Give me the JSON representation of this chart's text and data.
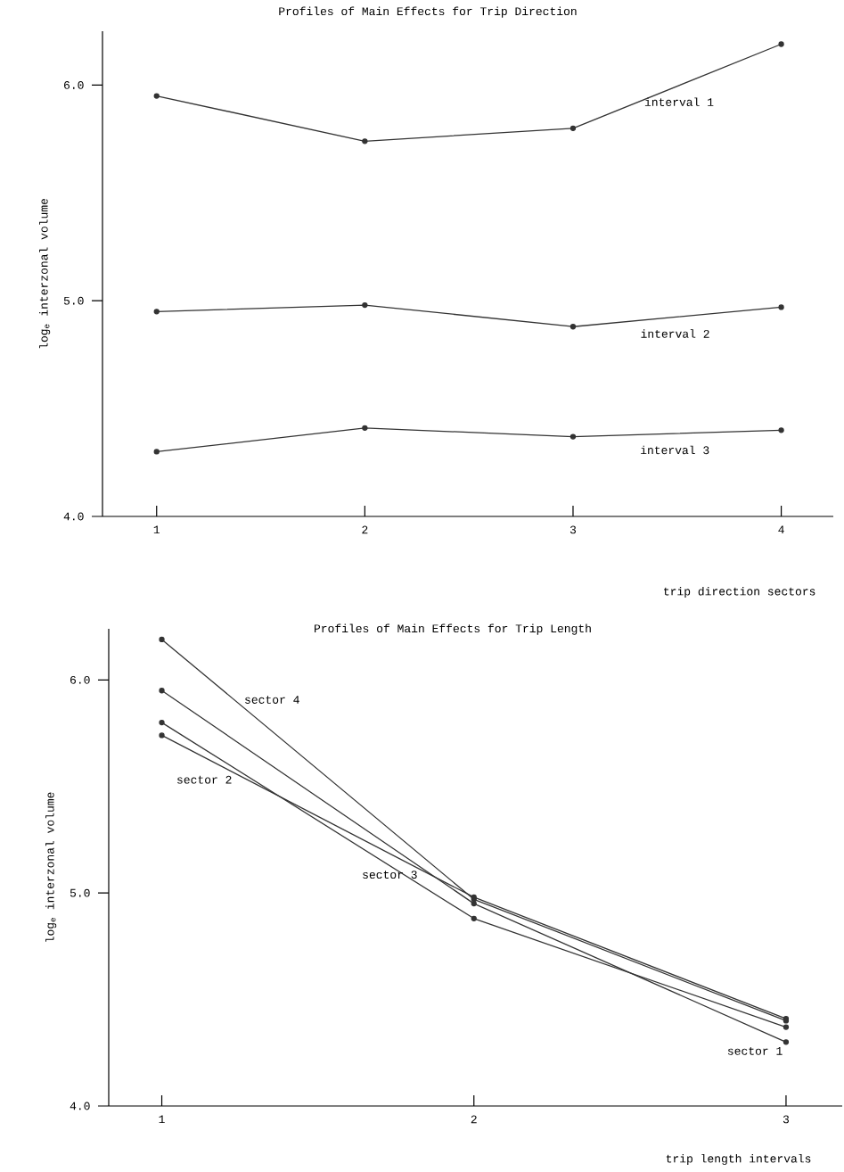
{
  "chart_data": [
    {
      "type": "line",
      "title": "Profiles of Main Effects for Trip Direction",
      "xlabel": "trip direction sectors",
      "ylabel": "log$_{e}$ interzonal volume",
      "x": [
        1,
        2,
        3,
        4
      ],
      "series": [
        {
          "name": "interval 1",
          "color": "#333333",
          "values": [
            5.95,
            5.74,
            5.8,
            6.19
          ]
        },
        {
          "name": "interval 2",
          "color": "#333333",
          "values": [
            4.95,
            4.98,
            4.88,
            4.97
          ]
        },
        {
          "name": "interval 3",
          "color": "#333333",
          "values": [
            4.3,
            4.41,
            4.37,
            4.4
          ]
        }
      ],
      "xlim": [
        0.74,
        4.25
      ],
      "ylim": [
        4.0,
        6.25
      ],
      "xticks": [
        1,
        2,
        3,
        4
      ],
      "yticks": [
        {
          "value": 4,
          "label": "4.0"
        },
        {
          "value": 5,
          "label": "5.0"
        },
        {
          "value": 6,
          "label": "6.0"
        }
      ],
      "marker": "circle",
      "line_style": "solid",
      "grid": false,
      "legend": false
    },
    {
      "type": "line",
      "title": "Profiles of Main Effects for Trip Length",
      "xlabel": "trip length intervals",
      "ylabel": "log$_{e}$ interzonal volume",
      "x": [
        1,
        2,
        3
      ],
      "series": [
        {
          "name": "sector 1",
          "color": "#333333",
          "values": [
            5.95,
            4.95,
            4.3
          ]
        },
        {
          "name": "sector 2",
          "color": "#333333",
          "values": [
            5.74,
            4.98,
            4.41
          ]
        },
        {
          "name": "sector 3",
          "color": "#333333",
          "values": [
            5.8,
            4.88,
            4.37
          ]
        },
        {
          "name": "sector 4",
          "color": "#333333",
          "values": [
            6.19,
            4.97,
            4.4
          ]
        }
      ],
      "xlim": [
        0.83,
        3.18
      ],
      "ylim": [
        4.0,
        6.24
      ],
      "xticks": [
        1,
        2,
        3
      ],
      "yticks": [
        {
          "value": 4,
          "label": "4.0"
        },
        {
          "value": 5,
          "label": "5.0"
        },
        {
          "value": 6,
          "label": "6.0"
        }
      ],
      "marker": "circle",
      "line_style": "solid",
      "grid": false,
      "legend": false
    }
  ]
}
